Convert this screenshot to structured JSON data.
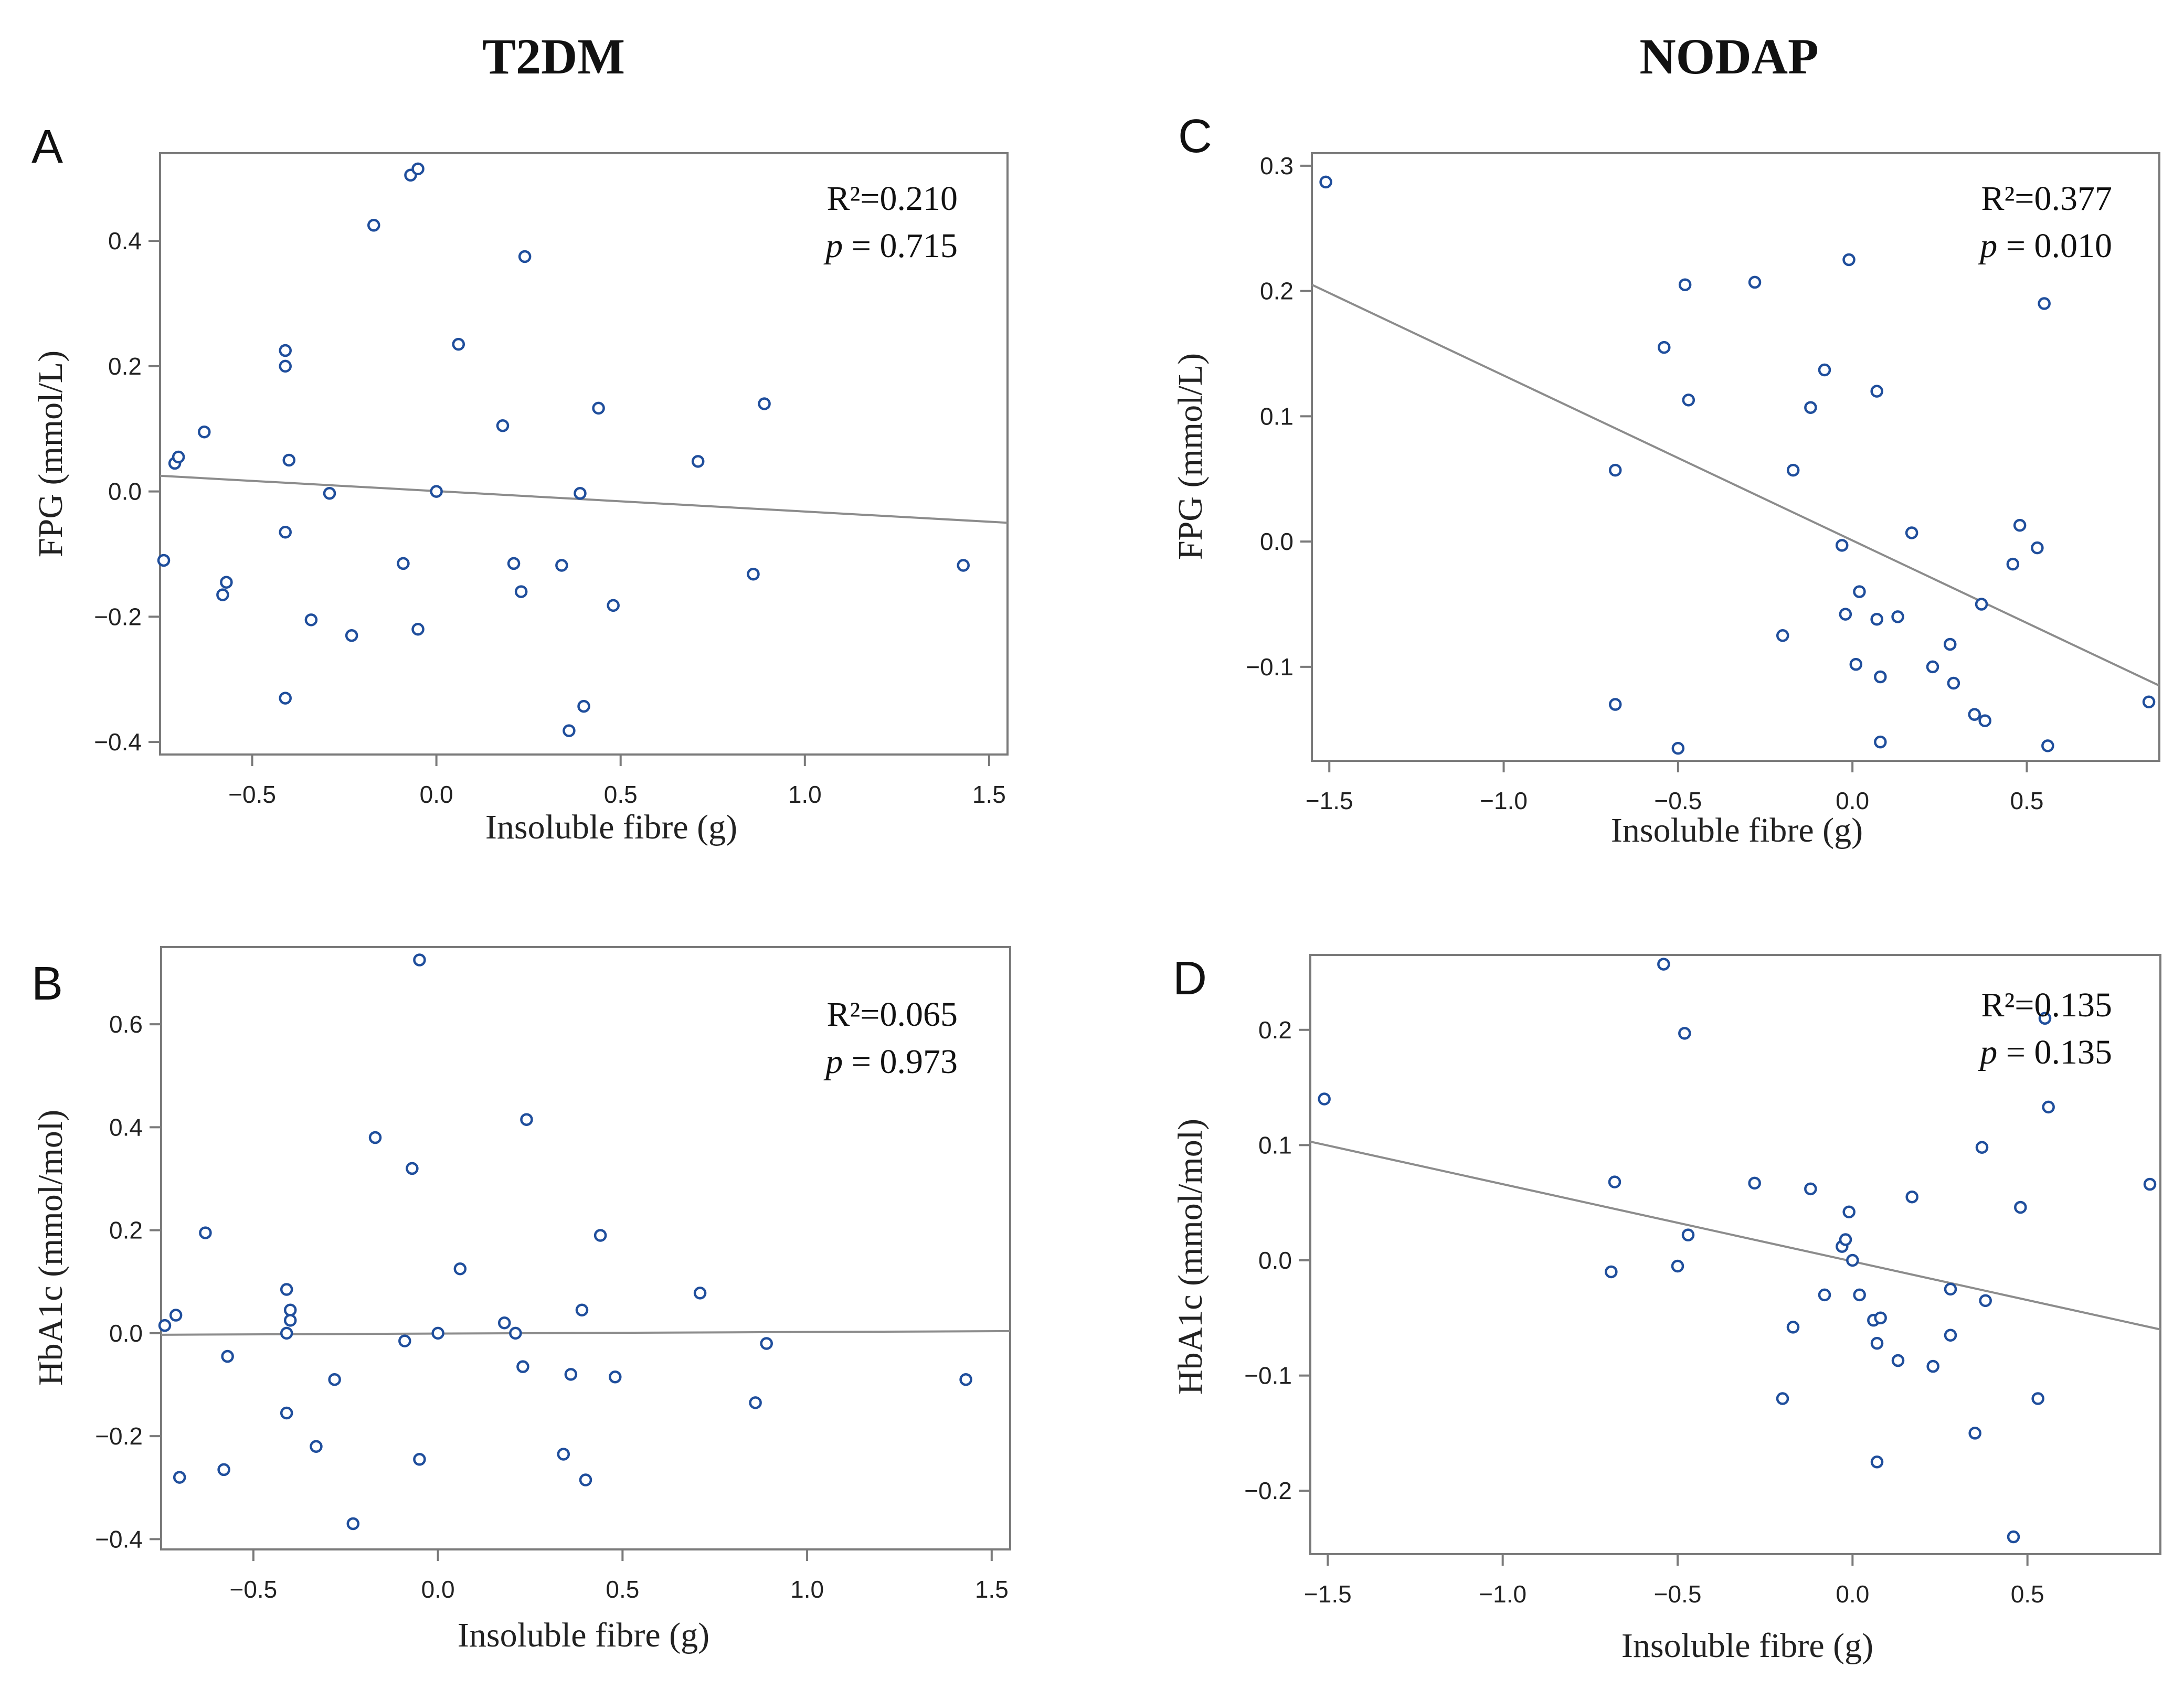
{
  "figure": {
    "group_titles": {
      "left": "T2DM",
      "right": "NODAP"
    },
    "point_color": "#1f4e9c",
    "line_color": "#8c8c8c",
    "frame_color": "#7a7a7a"
  },
  "chart_data": [
    {
      "id": "A",
      "panel_label": "A",
      "type": "scatter",
      "xlabel": "Insoluble fibre (g)",
      "ylabel": "FPG (mmol/L)",
      "xlim": [
        -0.75,
        1.55
      ],
      "ylim": [
        -0.42,
        0.54
      ],
      "xticks": [
        -0.5,
        0.0,
        0.5,
        1.0,
        1.5
      ],
      "xtick_labels": [
        "−0.5",
        "0.0",
        "0.5",
        "1.0",
        "1.5"
      ],
      "yticks": [
        -0.4,
        -0.2,
        0.0,
        0.2,
        0.4
      ],
      "ytick_labels": [
        "−0.4",
        "−0.2",
        "0.0",
        "0.2",
        "0.4"
      ],
      "stat_r2": "R²=0.210",
      "stat_p_label": "p",
      "stat_p_value": "= 0.715",
      "fit_line": {
        "x": [
          -0.75,
          1.55
        ],
        "y": [
          0.025,
          -0.05
        ]
      },
      "points": [
        [
          -0.74,
          -0.11
        ],
        [
          -0.71,
          0.045
        ],
        [
          -0.7,
          0.055
        ],
        [
          -0.63,
          0.095
        ],
        [
          -0.58,
          -0.165
        ],
        [
          -0.57,
          -0.145
        ],
        [
          -0.41,
          0.2
        ],
        [
          -0.41,
          0.225
        ],
        [
          -0.4,
          0.05
        ],
        [
          -0.41,
          -0.065
        ],
        [
          -0.41,
          -0.33
        ],
        [
          -0.34,
          -0.205
        ],
        [
          -0.29,
          -0.003
        ],
        [
          -0.23,
          -0.23
        ],
        [
          -0.17,
          0.425
        ],
        [
          -0.09,
          -0.115
        ],
        [
          -0.07,
          0.505
        ],
        [
          -0.05,
          0.515
        ],
        [
          -0.05,
          -0.22
        ],
        [
          0.0,
          0.0
        ],
        [
          0.06,
          0.235
        ],
        [
          0.18,
          0.105
        ],
        [
          0.21,
          -0.115
        ],
        [
          0.23,
          -0.16
        ],
        [
          0.24,
          0.375
        ],
        [
          0.34,
          -0.118
        ],
        [
          0.36,
          -0.382
        ],
        [
          0.39,
          -0.003
        ],
        [
          0.4,
          -0.343
        ],
        [
          0.44,
          0.133
        ],
        [
          0.48,
          -0.182
        ],
        [
          0.71,
          0.048
        ],
        [
          0.86,
          -0.132
        ],
        [
          0.89,
          0.14
        ],
        [
          1.43,
          -0.118
        ]
      ]
    },
    {
      "id": "B",
      "panel_label": "B",
      "type": "scatter",
      "xlabel": "Insoluble fibre (g)",
      "ylabel": "HbA1c (mmol/mol)",
      "xlim": [
        -0.75,
        1.55
      ],
      "ylim": [
        -0.42,
        0.75
      ],
      "xticks": [
        -0.5,
        0.0,
        0.5,
        1.0,
        1.5
      ],
      "xtick_labels": [
        "−0.5",
        "0.0",
        "0.5",
        "1.0",
        "1.5"
      ],
      "yticks": [
        -0.4,
        -0.2,
        0.0,
        0.2,
        0.4,
        0.6
      ],
      "ytick_labels": [
        "−0.4",
        "−0.2",
        "0.0",
        "0.2",
        "0.4",
        "0.6"
      ],
      "stat_r2": "R²=0.065",
      "stat_p_label": "p",
      "stat_p_value": "= 0.973",
      "fit_line": {
        "x": [
          -0.75,
          1.55
        ],
        "y": [
          -0.003,
          0.004
        ]
      },
      "points": [
        [
          -0.74,
          0.015
        ],
        [
          -0.71,
          0.035
        ],
        [
          -0.7,
          -0.28
        ],
        [
          -0.63,
          0.195
        ],
        [
          -0.58,
          -0.265
        ],
        [
          -0.57,
          -0.045
        ],
        [
          -0.41,
          0.085
        ],
        [
          -0.4,
          0.045
        ],
        [
          -0.4,
          0.025
        ],
        [
          -0.41,
          0.0
        ],
        [
          -0.41,
          -0.155
        ],
        [
          -0.33,
          -0.22
        ],
        [
          -0.28,
          -0.09
        ],
        [
          -0.23,
          -0.37
        ],
        [
          -0.17,
          0.38
        ],
        [
          -0.09,
          -0.015
        ],
        [
          -0.07,
          0.32
        ],
        [
          -0.05,
          0.725
        ],
        [
          -0.05,
          -0.245
        ],
        [
          0.0,
          0.0
        ],
        [
          0.06,
          0.125
        ],
        [
          0.18,
          0.02
        ],
        [
          0.21,
          0.0
        ],
        [
          0.23,
          -0.065
        ],
        [
          0.24,
          0.415
        ],
        [
          0.34,
          -0.235
        ],
        [
          0.36,
          -0.08
        ],
        [
          0.39,
          0.045
        ],
        [
          0.4,
          -0.285
        ],
        [
          0.44,
          0.19
        ],
        [
          0.48,
          -0.085
        ],
        [
          0.71,
          0.078
        ],
        [
          0.86,
          -0.135
        ],
        [
          0.89,
          -0.02
        ],
        [
          1.43,
          -0.09
        ]
      ]
    },
    {
      "id": "C",
      "panel_label": "C",
      "type": "scatter",
      "xlabel": "Insoluble fibre (g)",
      "ylabel": "FPG (mmol/L)",
      "xlim": [
        -1.55,
        0.88
      ],
      "ylim": [
        -0.175,
        0.31
      ],
      "xticks": [
        -1.5,
        -1.0,
        -0.5,
        0.0,
        0.5
      ],
      "xtick_labels": [
        "−1.5",
        "−1.0",
        "−0.5",
        "0.0",
        "0.5"
      ],
      "yticks": [
        -0.1,
        0.0,
        0.1,
        0.2,
        0.3
      ],
      "ytick_labels": [
        "−0.1",
        "0.0",
        "0.1",
        "0.2",
        "0.3"
      ],
      "stat_r2": "R²=0.377",
      "stat_p_label": "p",
      "stat_p_value": "= 0.010",
      "fit_line": {
        "x": [
          -1.55,
          0.88
        ],
        "y": [
          0.205,
          -0.115
        ]
      },
      "points": [
        [
          -1.51,
          0.287
        ],
        [
          -0.68,
          0.057
        ],
        [
          -0.68,
          -0.13
        ],
        [
          -0.54,
          0.155
        ],
        [
          -0.5,
          -0.165
        ],
        [
          -0.48,
          0.205
        ],
        [
          -0.47,
          0.113
        ],
        [
          -0.28,
          0.207
        ],
        [
          -0.2,
          -0.075
        ],
        [
          -0.17,
          0.057
        ],
        [
          -0.12,
          0.107
        ],
        [
          -0.08,
          0.137
        ],
        [
          -0.03,
          -0.003
        ],
        [
          -0.02,
          -0.058
        ],
        [
          -0.01,
          0.225
        ],
        [
          0.01,
          -0.098
        ],
        [
          0.02,
          -0.04
        ],
        [
          0.07,
          -0.062
        ],
        [
          0.07,
          0.12
        ],
        [
          0.08,
          -0.16
        ],
        [
          0.08,
          -0.108
        ],
        [
          0.13,
          -0.06
        ],
        [
          0.17,
          0.007
        ],
        [
          0.23,
          -0.1
        ],
        [
          0.28,
          -0.082
        ],
        [
          0.29,
          -0.113
        ],
        [
          0.35,
          -0.138
        ],
        [
          0.37,
          -0.05
        ],
        [
          0.38,
          -0.143
        ],
        [
          0.46,
          -0.018
        ],
        [
          0.48,
          0.013
        ],
        [
          0.53,
          -0.005
        ],
        [
          0.55,
          0.19
        ],
        [
          0.56,
          -0.163
        ],
        [
          0.85,
          -0.128
        ]
      ]
    },
    {
      "id": "D",
      "panel_label": "D",
      "type": "scatter",
      "xlabel": "Insoluble fibre (g)",
      "ylabel": "HbA1c (mmol/mol)",
      "xlim": [
        -1.55,
        0.88
      ],
      "ylim": [
        -0.255,
        0.265
      ],
      "xticks": [
        -1.5,
        -1.0,
        -0.5,
        0.0,
        0.5
      ],
      "xtick_labels": [
        "−1.5",
        "−1.0",
        "−0.5",
        "0.0",
        "0.5"
      ],
      "yticks": [
        -0.2,
        -0.1,
        0.0,
        0.1,
        0.2
      ],
      "ytick_labels": [
        "−0.2",
        "−0.1",
        "0.0",
        "0.1",
        "0.2"
      ],
      "stat_r2": "R²=0.135",
      "stat_p_label": "p",
      "stat_p_value": "= 0.135",
      "fit_line": {
        "x": [
          -1.55,
          0.88
        ],
        "y": [
          0.103,
          -0.06
        ]
      },
      "points": [
        [
          -1.51,
          0.14
        ],
        [
          -0.68,
          0.068
        ],
        [
          -0.69,
          -0.01
        ],
        [
          -0.54,
          0.257
        ],
        [
          -0.5,
          -0.005
        ],
        [
          -0.48,
          0.197
        ],
        [
          -0.47,
          0.022
        ],
        [
          -0.28,
          0.067
        ],
        [
          -0.2,
          -0.12
        ],
        [
          -0.17,
          -0.058
        ],
        [
          -0.12,
          0.062
        ],
        [
          -0.08,
          -0.03
        ],
        [
          -0.03,
          0.012
        ],
        [
          -0.02,
          0.018
        ],
        [
          -0.01,
          0.042
        ],
        [
          0.0,
          0.0
        ],
        [
          0.02,
          -0.03
        ],
        [
          0.06,
          -0.052
        ],
        [
          0.07,
          -0.175
        ],
        [
          0.07,
          -0.072
        ],
        [
          0.08,
          -0.05
        ],
        [
          0.13,
          -0.087
        ],
        [
          0.17,
          0.055
        ],
        [
          0.23,
          -0.092
        ],
        [
          0.28,
          -0.065
        ],
        [
          0.28,
          -0.025
        ],
        [
          0.35,
          -0.15
        ],
        [
          0.37,
          0.098
        ],
        [
          0.38,
          -0.035
        ],
        [
          0.46,
          -0.24
        ],
        [
          0.48,
          0.046
        ],
        [
          0.53,
          -0.12
        ],
        [
          0.55,
          0.21
        ],
        [
          0.56,
          0.133
        ],
        [
          0.85,
          0.066
        ]
      ]
    }
  ]
}
